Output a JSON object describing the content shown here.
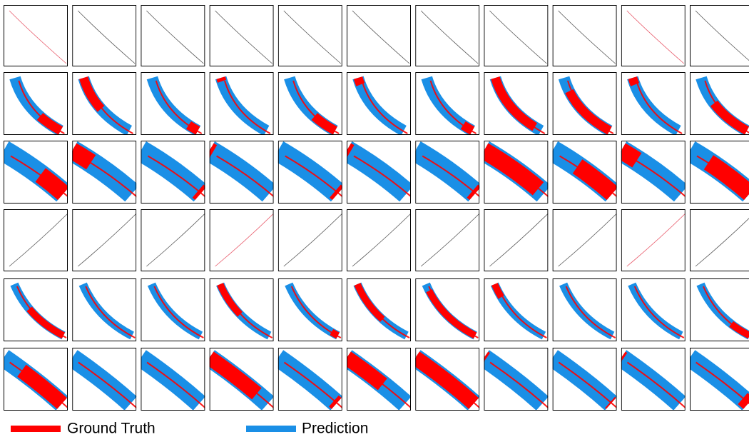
{
  "legend": [
    {
      "label": "Ground Truth",
      "color": "#ff0000"
    },
    {
      "label": "Prediction",
      "color": "#1a8fe6"
    }
  ]
}
